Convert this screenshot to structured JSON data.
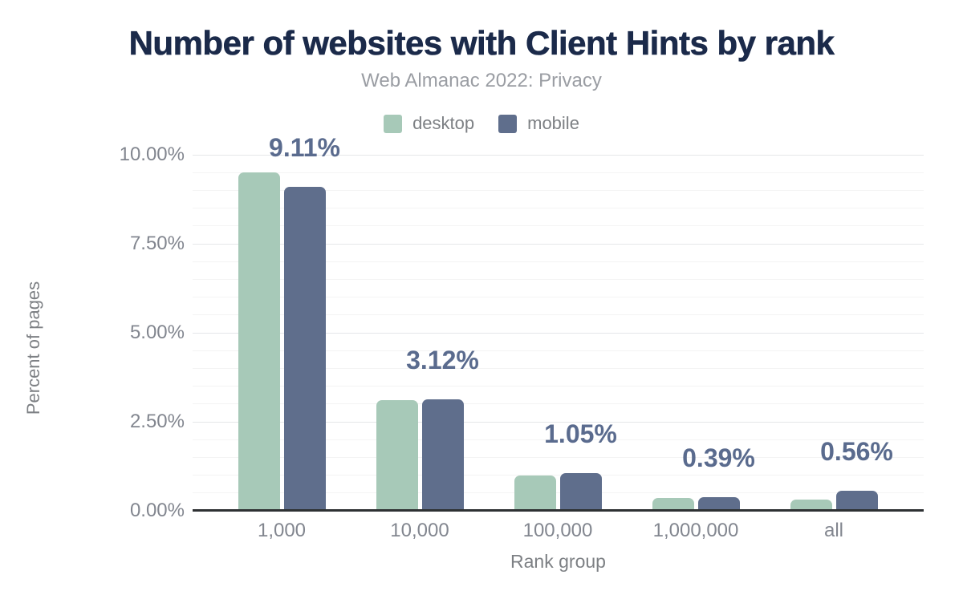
{
  "chart_data": {
    "type": "bar",
    "title": "Number of websites with Client Hints by rank",
    "subtitle": "Web Almanac 2022: Privacy",
    "categories": [
      "1,000",
      "10,000",
      "100,000",
      "1,000,000",
      "all"
    ],
    "series": [
      {
        "name": "desktop",
        "color": "#a7c9b8",
        "values": [
          9.5,
          3.1,
          0.99,
          0.36,
          0.31
        ]
      },
      {
        "name": "mobile",
        "color": "#5f6e8c",
        "values": [
          9.11,
          3.12,
          1.05,
          0.39,
          0.56
        ]
      }
    ],
    "data_labels": {
      "series": "mobile",
      "values": [
        "9.11%",
        "3.12%",
        "1.05%",
        "0.39%",
        "0.56%"
      ],
      "color": "#5a6b8e"
    },
    "xlabel": "Rank group",
    "ylabel": "Percent of pages",
    "ylim": [
      0,
      10
    ],
    "y_ticks": [
      {
        "value": 0,
        "label": "0.00%"
      },
      {
        "value": 2.5,
        "label": "2.50%"
      },
      {
        "value": 5,
        "label": "5.00%"
      },
      {
        "value": 7.5,
        "label": "7.50%"
      },
      {
        "value": 10,
        "label": "10.00%"
      }
    ],
    "minor_grid_step": 0.5,
    "grid": true,
    "legend_position": "top"
  }
}
